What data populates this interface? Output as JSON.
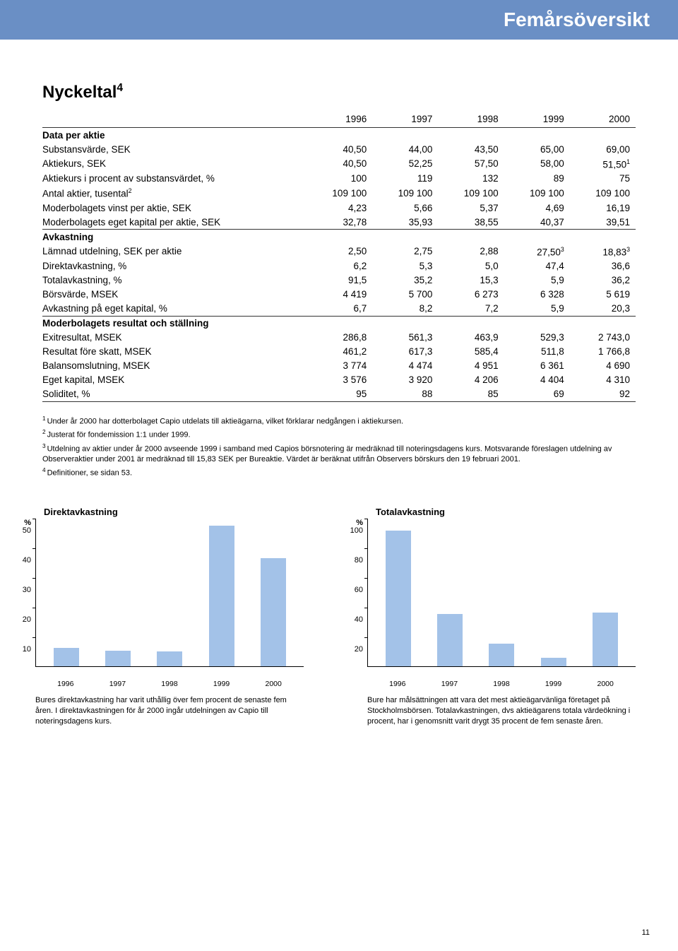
{
  "header_title": "Femårsöversikt",
  "main_title": "Nyckeltal",
  "main_title_sup": "4",
  "page_number": "11",
  "table": {
    "year_cols": [
      "1996",
      "1997",
      "1998",
      "1999",
      "2000"
    ],
    "sections": [
      {
        "heading": "Data per aktie",
        "rows": [
          {
            "label": "Substansvärde, SEK",
            "vals": [
              "40,50",
              "44,00",
              "43,50",
              "65,00",
              "69,00"
            ]
          },
          {
            "label": "Aktiekurs, SEK",
            "vals": [
              "40,50",
              "52,25",
              "57,50",
              "58,00",
              "51,50"
            ],
            "sup_last": "1"
          },
          {
            "label": "Aktiekurs i procent av substansvärdet, %",
            "vals": [
              "100",
              "119",
              "132",
              "89",
              "75"
            ]
          },
          {
            "label": "Antal aktier, tusental",
            "label_sup": "2",
            "vals": [
              "109 100",
              "109 100",
              "109 100",
              "109 100",
              "109 100"
            ]
          },
          {
            "label": "Moderbolagets vinst per aktie, SEK",
            "vals": [
              "4,23",
              "5,66",
              "5,37",
              "4,69",
              "16,19"
            ]
          },
          {
            "label": "Moderbolagets eget kapital per aktie, SEK",
            "vals": [
              "32,78",
              "35,93",
              "38,55",
              "40,37",
              "39,51"
            ],
            "underline": true
          }
        ]
      },
      {
        "heading": "Avkastning",
        "rows": [
          {
            "label": "Lämnad utdelning, SEK per aktie",
            "vals": [
              "2,50",
              "2,75",
              "2,88",
              "27,50",
              "18,83"
            ],
            "sup_col4": "3",
            "sup_last": "3"
          },
          {
            "label": "Direktavkastning, %",
            "vals": [
              "6,2",
              "5,3",
              "5,0",
              "47,4",
              "36,6"
            ]
          },
          {
            "label": "Totalavkastning, %",
            "vals": [
              "91,5",
              "35,2",
              "15,3",
              "5,9",
              "36,2"
            ]
          },
          {
            "label": "Börsvärde, MSEK",
            "vals": [
              "4 419",
              "5 700",
              "6 273",
              "6 328",
              "5 619"
            ]
          },
          {
            "label": "Avkastning på eget kapital, %",
            "vals": [
              "6,7",
              "8,2",
              "7,2",
              "5,9",
              "20,3"
            ],
            "underline": true
          }
        ]
      },
      {
        "heading": "Moderbolagets resultat och ställning",
        "rows": [
          {
            "label": "Exitresultat, MSEK",
            "vals": [
              "286,8",
              "561,3",
              "463,9",
              "529,3",
              "2 743,0"
            ]
          },
          {
            "label": "Resultat före skatt, MSEK",
            "vals": [
              "461,2",
              "617,3",
              "585,4",
              "511,8",
              "1 766,8"
            ]
          },
          {
            "label": "Balansomslutning, MSEK",
            "vals": [
              "3 774",
              "4 474",
              "4 951",
              "6 361",
              "4 690"
            ]
          },
          {
            "label": "Eget kapital, MSEK",
            "vals": [
              "3 576",
              "3 920",
              "4 206",
              "4 404",
              "4 310"
            ]
          },
          {
            "label": "Soliditet, %",
            "vals": [
              "95",
              "88",
              "85",
              "69",
              "92"
            ],
            "underline": true
          }
        ]
      }
    ]
  },
  "footnotes": [
    {
      "n": "1",
      "text": "Under år 2000 har dotterbolaget Capio utdelats till aktieägarna, vilket förklarar nedgången i aktiekursen."
    },
    {
      "n": "2",
      "text": "Justerat för fondemission 1:1 under 1999."
    },
    {
      "n": "3",
      "text": "Utdelning av aktier under år 2000 avseende 1999 i samband med Capios börsnotering är medräknad till noteringsdagens kurs. Motsvarande föreslagen utdelning av Observeraktier under 2001 är medräknad till 15,83 SEK per Bureaktie. Värdet är beräknat utifrån Observers börskurs den 19 februari 2001."
    },
    {
      "n": "4",
      "text": "Definitioner, se sidan 53."
    }
  ],
  "charts": [
    {
      "title": "Direktavkastning",
      "y_unit": "%",
      "ylim": [
        0,
        50
      ],
      "ytick_step": 10,
      "yticks": [
        "50",
        "40",
        "30",
        "20",
        "10"
      ],
      "categories": [
        "1996",
        "1997",
        "1998",
        "1999",
        "2000"
      ],
      "values": [
        6.2,
        5.3,
        5.0,
        47.4,
        36.6
      ],
      "bar_color": "#a3c2e8",
      "caption": "Bures direktavkastning har varit uthållig över fem procent de senaste fem åren. I direktavkastningen för år 2000 ingår utdelningen av Capio till noteringsdagens kurs."
    },
    {
      "title": "Totalavkastning",
      "y_unit": "%",
      "ylim": [
        0,
        100
      ],
      "ytick_step": 20,
      "yticks": [
        "100",
        "80",
        "60",
        "40",
        "20"
      ],
      "categories": [
        "1996",
        "1997",
        "1998",
        "1999",
        "2000"
      ],
      "values": [
        91.5,
        35.2,
        15.3,
        5.9,
        36.2
      ],
      "bar_color": "#a3c2e8",
      "caption": "Bure har målsättningen att vara det mest aktieägarvänliga företaget på Stockholmsbörsen. Totalavkastningen, dvs aktieägarens totala värdeökning i procent, har i genomsnitt varit drygt 35 procent de fem senaste åren."
    }
  ]
}
